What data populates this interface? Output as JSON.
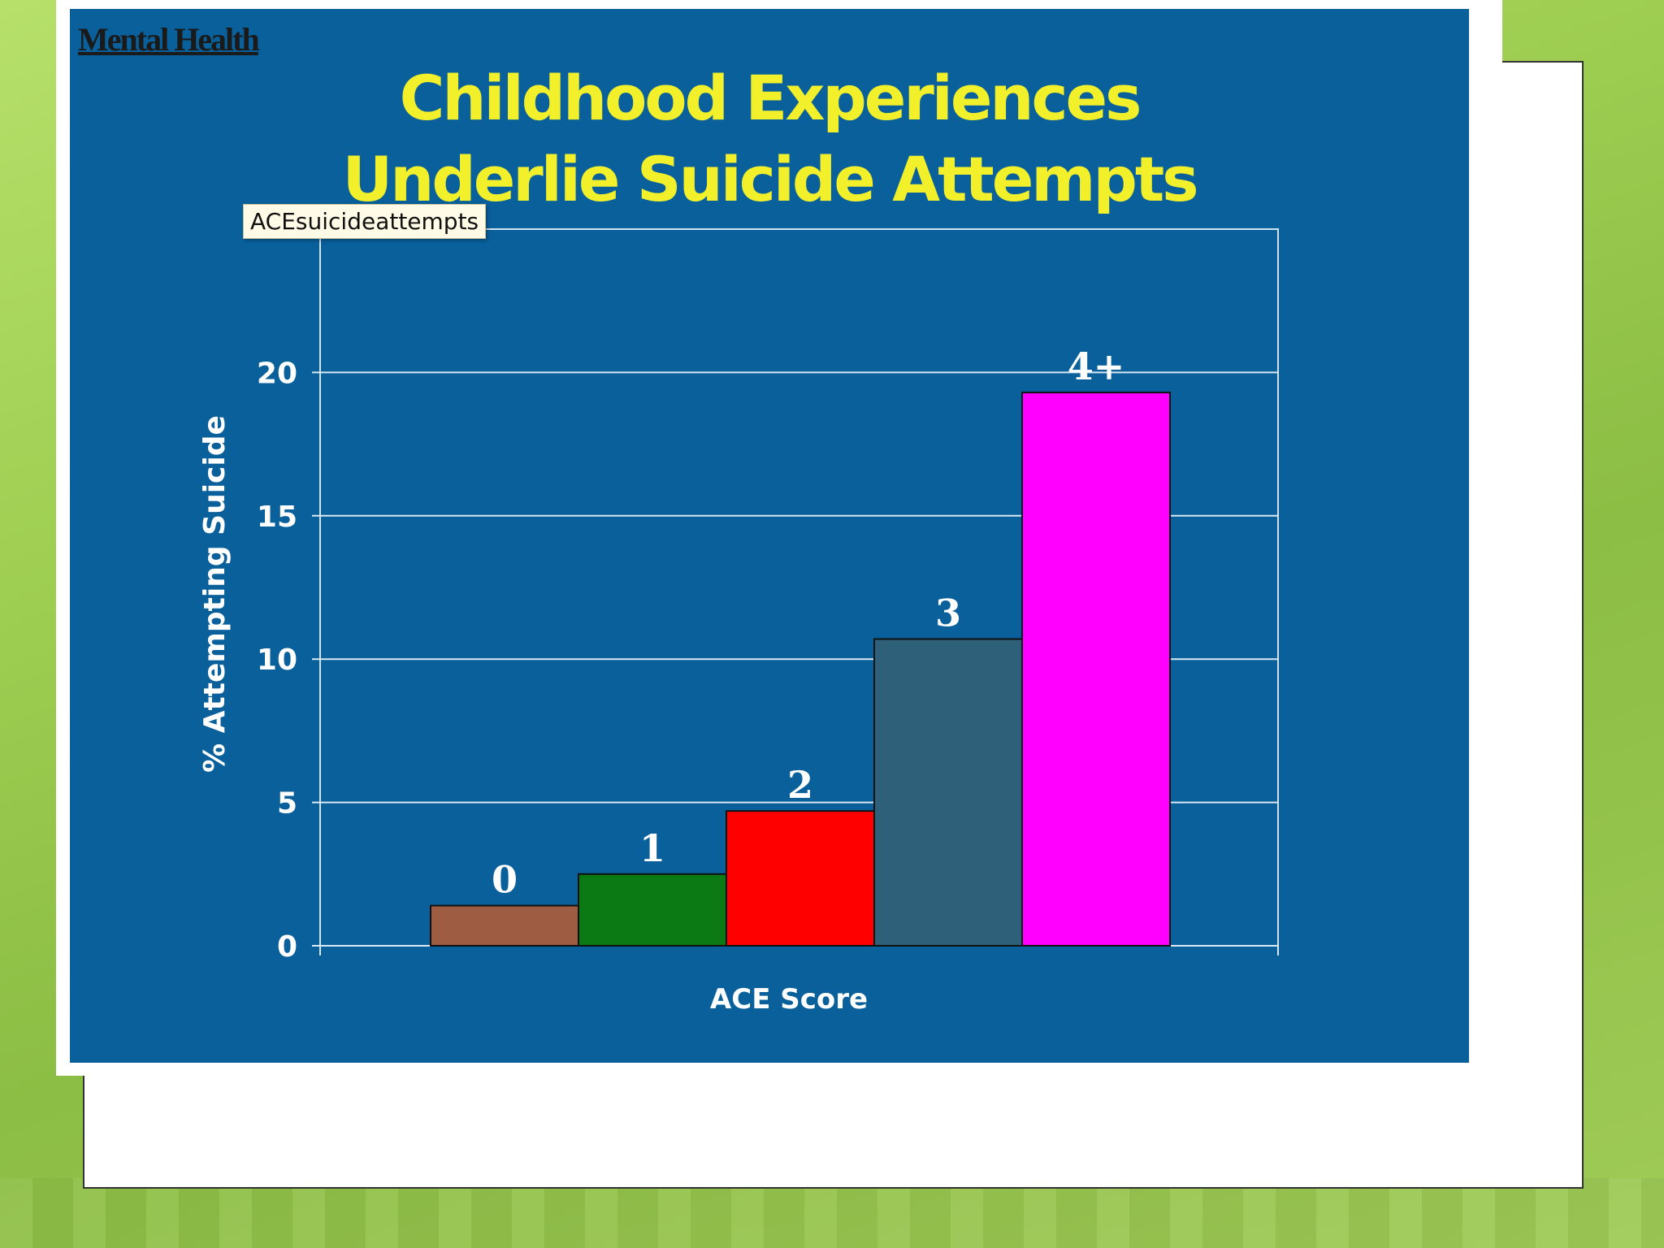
{
  "slide": {
    "corner_label": "Mental Health",
    "title_line1": "Childhood Experiences",
    "title_line2": "Underlie Suicide Attempts",
    "tooltip": "ACEsuicideattempts"
  },
  "chart_data": {
    "type": "bar",
    "categories": [
      "0",
      "1",
      "2",
      "3",
      "4+"
    ],
    "values": [
      1.4,
      2.5,
      4.7,
      10.7,
      19.3
    ],
    "colors": [
      "#9e5c43",
      "#0b7a14",
      "#ff0000",
      "#2e6079",
      "#ff00ff"
    ],
    "xlabel": "ACE Score",
    "ylabel": "% Attempting Suicide",
    "ylim": [
      0,
      25
    ],
    "yticks": [
      0,
      5,
      10,
      15,
      20
    ],
    "grid": true
  }
}
